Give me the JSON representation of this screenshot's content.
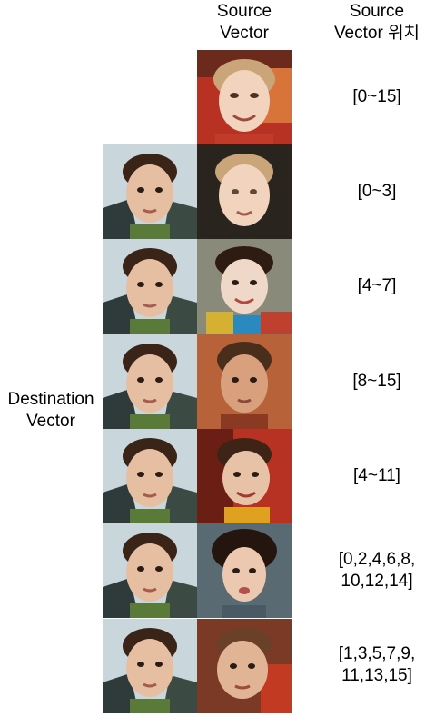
{
  "headers": {
    "source_vector": [
      "Source",
      "Vector"
    ],
    "source_vector_position": [
      "Source",
      "Vector 위치"
    ]
  },
  "destination_label": [
    "Destination",
    "Vector"
  ],
  "rows": [
    {
      "position": [
        "[0~15]"
      ]
    },
    {
      "position": [
        "[0~3]"
      ]
    },
    {
      "position": [
        "[4~7]"
      ]
    },
    {
      "position": [
        "[8~15]"
      ]
    },
    {
      "position": [
        "[4~11]"
      ]
    },
    {
      "position": [
        "[0,2,4,6,8,",
        "10,12,14]"
      ]
    },
    {
      "position": [
        "[1,3,5,7,9,",
        "11,13,15]"
      ]
    }
  ],
  "colors": {
    "destination_bg": "#c9d6dc",
    "skin_light": "#f2d3bd",
    "skin_warm": "#d9a07e",
    "hair_dark": "#3a2418",
    "hair_blond": "#caa57a",
    "bg_red": "#b83224",
    "bg_dark": "#2a241e"
  }
}
